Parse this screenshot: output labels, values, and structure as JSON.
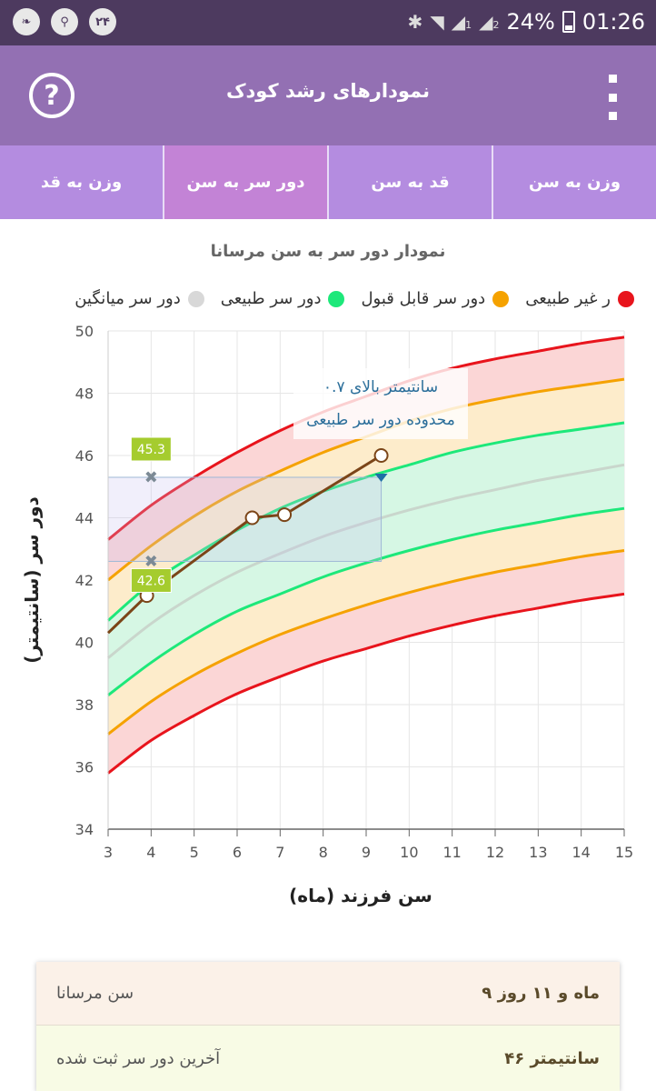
{
  "status_bar": {
    "left_badge": "۲۴",
    "battery": "24%",
    "time": "01:26",
    "sim1": "1",
    "sim2": "2"
  },
  "app_bar": {
    "title": "نمودارهای رشد کودک",
    "help_icon": "help-circle-icon",
    "menu_icon": "kebab-menu-icon"
  },
  "tabs": [
    {
      "label": "وزن به قد",
      "active": false
    },
    {
      "label": "دور سر به سن",
      "active": true
    },
    {
      "label": "قد به سن",
      "active": false
    },
    {
      "label": "وزن به سن",
      "active": false
    }
  ],
  "chart": {
    "title": "نمودار دور سر به سن مرسانا",
    "legend": [
      {
        "label": "ر غیر طبیعی",
        "color": "#e8141c"
      },
      {
        "label": "دور سر قابل قبول",
        "color": "#f5a200"
      },
      {
        "label": "دور سر طبیعی",
        "color": "#1de87a"
      },
      {
        "label": "دور سر میانگین",
        "color": "#d8d8d8"
      }
    ],
    "annotation_line1": "۰.۷ سانتیمتر بالای",
    "annotation_line2": "محدوده دور سر طبیعی"
  },
  "chart_data": {
    "type": "line",
    "xlabel": "سن فرزند (ماه)",
    "ylabel": "دور سر (سانتیمتر)",
    "xlim": [
      3,
      15
    ],
    "ylim": [
      34,
      50
    ],
    "xticks": [
      3,
      4,
      5,
      6,
      7,
      8,
      9,
      10,
      11,
      12,
      13,
      14,
      15
    ],
    "yticks": [
      34,
      36,
      38,
      40,
      42,
      44,
      46,
      48,
      50
    ],
    "grid": true,
    "reference_x": [
      3,
      4,
      5,
      6,
      7,
      8,
      9,
      10,
      11,
      12,
      13,
      14,
      15
    ],
    "bands": [
      {
        "key": "abnormal_high",
        "color": "#e8141c",
        "values": [
          43.3,
          44.4,
          45.3,
          46.1,
          46.8,
          47.4,
          47.9,
          48.4,
          48.8,
          49.1,
          49.35,
          49.6,
          49.8
        ]
      },
      {
        "key": "acceptable_high",
        "color": "#f5a200",
        "values": [
          42.0,
          43.1,
          44.05,
          44.85,
          45.5,
          46.1,
          46.6,
          47.1,
          47.5,
          47.8,
          48.05,
          48.25,
          48.45
        ]
      },
      {
        "key": "normal_high",
        "color": "#1de87a",
        "values": [
          40.7,
          41.9,
          42.8,
          43.6,
          44.3,
          44.85,
          45.3,
          45.7,
          46.1,
          46.4,
          46.65,
          46.85,
          47.05
        ]
      },
      {
        "key": "mean",
        "color": "#c9d6cc",
        "values": [
          39.5,
          40.6,
          41.5,
          42.25,
          42.85,
          43.4,
          43.85,
          44.25,
          44.6,
          44.9,
          45.2,
          45.45,
          45.7
        ]
      },
      {
        "key": "normal_low",
        "color": "#1de87a",
        "values": [
          38.3,
          39.35,
          40.25,
          41.0,
          41.55,
          42.1,
          42.55,
          42.95,
          43.3,
          43.6,
          43.85,
          44.1,
          44.3
        ]
      },
      {
        "key": "acceptable_low",
        "color": "#f5a200",
        "values": [
          37.05,
          38.1,
          38.95,
          39.65,
          40.25,
          40.75,
          41.2,
          41.6,
          41.95,
          42.25,
          42.5,
          42.75,
          42.95
        ]
      },
      {
        "key": "abnormal_low",
        "color": "#e8141c",
        "values": [
          35.8,
          36.85,
          37.65,
          38.35,
          38.9,
          39.4,
          39.8,
          40.2,
          40.55,
          40.85,
          41.1,
          41.35,
          41.55
        ]
      }
    ],
    "child_series": {
      "color": "#7b4518",
      "points": [
        {
          "x": 3,
          "y": 40.3
        },
        {
          "x": 3.9,
          "y": 41.5
        },
        {
          "x": 6.35,
          "y": 44.0
        },
        {
          "x": 7.1,
          "y": 44.1
        },
        {
          "x": 9.35,
          "y": 46.0
        }
      ]
    },
    "range_markers": {
      "x": 4,
      "upper": {
        "value": 45.3,
        "label": "45.3"
      },
      "lower": {
        "value": 42.6,
        "label": "42.6"
      }
    },
    "highlight_box": {
      "x_from": 3,
      "x_to": 9.35,
      "y_from": 42.6,
      "y_to": 45.3
    },
    "threshold_marker": {
      "x": 9.35,
      "y": 45.3
    }
  },
  "info": {
    "rows": [
      {
        "label": "سن مرسانا",
        "value": "۹ ماه و ۱۱ روز"
      },
      {
        "label": "آخرین دور سر ثبت شده",
        "value": "۴۶ سانتیمتر"
      }
    ]
  }
}
